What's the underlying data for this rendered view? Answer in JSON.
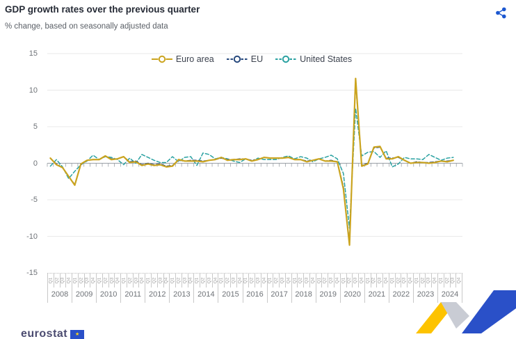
{
  "header": {
    "title": "GDP growth rates over the previous quarter",
    "subtitle": "% change, based on seasonally adjusted data"
  },
  "footer": {
    "logo_text": "eurostat"
  },
  "colors": {
    "euro_area": "#CBA41F",
    "eu": "#27497D",
    "united_states": "#2AA1A1",
    "share_icon": "#1B57D0",
    "zero_axis": "#9AA0A6",
    "gridline": "#E9E9E9",
    "corner_yellow": "#FDC300",
    "corner_gray": "#C9CCD4",
    "corner_blue": "#2A50C8"
  },
  "chart_data": {
    "type": "line",
    "title": "GDP growth rates over the previous quarter",
    "ylabel": "% change, based on seasonally adjusted data",
    "ylim": [
      -15,
      15
    ],
    "yticks": [
      15,
      10,
      5,
      0,
      -5,
      -10,
      -15
    ],
    "grid": true,
    "legend_position": "top-center",
    "years": [
      "2008",
      "2009",
      "2010",
      "2011",
      "2012",
      "2013",
      "2014",
      "2015",
      "2016",
      "2017",
      "2018",
      "2019",
      "2020",
      "2021",
      "2022",
      "2023",
      "2024"
    ],
    "quarters": [
      "Q1",
      "Q2",
      "Q3",
      "Q4"
    ],
    "categories": [
      "2008-Q1",
      "2008-Q2",
      "2008-Q3",
      "2008-Q4",
      "2009-Q1",
      "2009-Q2",
      "2009-Q3",
      "2009-Q4",
      "2010-Q1",
      "2010-Q2",
      "2010-Q3",
      "2010-Q4",
      "2011-Q1",
      "2011-Q2",
      "2011-Q3",
      "2011-Q4",
      "2012-Q1",
      "2012-Q2",
      "2012-Q3",
      "2012-Q4",
      "2013-Q1",
      "2013-Q2",
      "2013-Q3",
      "2013-Q4",
      "2014-Q1",
      "2014-Q2",
      "2014-Q3",
      "2014-Q4",
      "2015-Q1",
      "2015-Q2",
      "2015-Q3",
      "2015-Q4",
      "2016-Q1",
      "2016-Q2",
      "2016-Q3",
      "2016-Q4",
      "2017-Q1",
      "2017-Q2",
      "2017-Q3",
      "2017-Q4",
      "2018-Q1",
      "2018-Q2",
      "2018-Q3",
      "2018-Q4",
      "2019-Q1",
      "2019-Q2",
      "2019-Q3",
      "2019-Q4",
      "2020-Q1",
      "2020-Q2",
      "2020-Q3",
      "2020-Q4",
      "2021-Q1",
      "2021-Q2",
      "2021-Q3",
      "2021-Q4",
      "2022-Q1",
      "2022-Q2",
      "2022-Q3",
      "2022-Q4",
      "2023-Q1",
      "2023-Q2",
      "2023-Q3",
      "2023-Q4",
      "2024-Q1",
      "2024-Q2",
      "2024-Q3"
    ],
    "series": [
      {
        "name": "Euro area",
        "color": "#CBA41F",
        "style": "solid",
        "values": [
          0.7,
          -0.2,
          -0.6,
          -1.8,
          -3.0,
          -0.1,
          0.4,
          0.5,
          0.5,
          1.0,
          0.5,
          0.6,
          0.9,
          0.1,
          0.2,
          -0.3,
          -0.1,
          -0.3,
          -0.2,
          -0.5,
          -0.4,
          0.5,
          0.3,
          0.3,
          0.3,
          0.2,
          0.4,
          0.5,
          0.8,
          0.4,
          0.5,
          0.5,
          0.6,
          0.3,
          0.5,
          0.8,
          0.7,
          0.7,
          0.7,
          0.8,
          0.5,
          0.5,
          0.2,
          0.4,
          0.6,
          0.3,
          0.3,
          0.2,
          -3.5,
          -11.2,
          11.6,
          -0.4,
          -0.1,
          2.2,
          2.3,
          0.6,
          0.6,
          0.9,
          0.4,
          0.0,
          0.1,
          0.1,
          0.0,
          0.1,
          0.3,
          0.2,
          0.4
        ]
      },
      {
        "name": "EU",
        "color": "#27497D",
        "style": "dashed",
        "values": [
          0.7,
          -0.1,
          -0.6,
          -1.8,
          -2.9,
          -0.2,
          0.4,
          0.5,
          0.5,
          1.0,
          0.6,
          0.6,
          0.9,
          0.2,
          0.3,
          -0.2,
          0.0,
          -0.2,
          -0.1,
          -0.4,
          -0.3,
          0.4,
          0.3,
          0.4,
          0.4,
          0.3,
          0.4,
          0.5,
          0.7,
          0.5,
          0.5,
          0.6,
          0.6,
          0.4,
          0.5,
          0.8,
          0.7,
          0.7,
          0.7,
          0.8,
          0.5,
          0.5,
          0.3,
          0.4,
          0.6,
          0.3,
          0.4,
          0.2,
          -3.2,
          -10.9,
          11.2,
          -0.3,
          0.0,
          2.1,
          2.2,
          0.7,
          0.7,
          0.8,
          0.4,
          0.0,
          0.2,
          0.1,
          0.1,
          0.2,
          0.3,
          0.3,
          0.4
        ]
      },
      {
        "name": "United States",
        "color": "#2AA1A1",
        "style": "dashed",
        "values": [
          -0.4,
          0.5,
          -0.5,
          -2.1,
          -1.1,
          -0.2,
          0.3,
          1.1,
          0.5,
          0.9,
          0.8,
          0.5,
          -0.2,
          0.7,
          0.0,
          1.2,
          0.8,
          0.4,
          0.1,
          0.1,
          0.9,
          0.2,
          0.8,
          0.9,
          -0.3,
          1.4,
          1.2,
          0.6,
          0.8,
          0.6,
          0.3,
          0.1,
          0.6,
          0.3,
          0.7,
          0.5,
          0.5,
          0.5,
          0.8,
          1.0,
          0.6,
          0.9,
          0.7,
          0.2,
          0.6,
          0.8,
          1.1,
          0.6,
          -1.4,
          -8.9,
          7.5,
          1.0,
          1.5,
          1.6,
          0.8,
          1.7,
          -0.5,
          -0.1,
          0.8,
          0.6,
          0.6,
          0.5,
          1.2,
          0.8,
          0.4,
          0.7,
          0.8
        ]
      }
    ]
  }
}
